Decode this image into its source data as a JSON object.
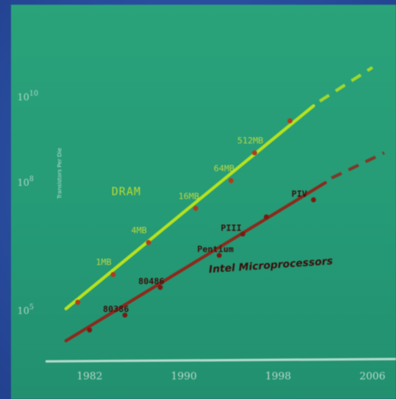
{
  "chart_data": {
    "type": "line",
    "title": "",
    "ylabel": "Transistors Per Die",
    "y_scale": "log",
    "x_ticks": [
      "1982",
      "1990",
      "1998",
      "2006"
    ],
    "y_ticks": [
      {
        "value": 100000,
        "base": "10",
        "exp": "5"
      },
      {
        "value": 100000000,
        "base": "10",
        "exp": "8"
      },
      {
        "value": 10000000000,
        "base": "10",
        "exp": "10"
      }
    ],
    "xlim": [
      1978,
      2008
    ],
    "ylim_exp": [
      4.0,
      10.7
    ],
    "series": [
      {
        "name": "DRAM",
        "color": "#b6e21e",
        "marker_color": "#b23a1c",
        "x": [
          1981,
          1984,
          1987,
          1991,
          1994,
          1996,
          1999
        ],
        "y_exp": [
          5.2,
          5.85,
          6.6,
          7.4,
          8.05,
          8.7,
          9.45
        ],
        "point_labels": [
          "",
          "1MB",
          "4MB",
          "16MB",
          "64MB",
          "512MB",
          ""
        ],
        "fit_start": [
          1980,
          5.05
        ],
        "fit_end": [
          2001,
          9.8
        ],
        "extension_end": [
          2006,
          10.7
        ]
      },
      {
        "name": "Intel Microprocessors",
        "color": "#8b2a1c",
        "marker_color": "#7a1a10",
        "x": [
          1982,
          1985,
          1988,
          1993,
          1995,
          1997,
          2001
        ],
        "y_exp": [
          4.55,
          4.9,
          5.55,
          6.3,
          6.8,
          7.2,
          7.6
        ],
        "point_labels": [
          "",
          "80386",
          "80486",
          "Pentium",
          "PIII",
          "",
          "PIV"
        ],
        "fit_start": [
          1980,
          4.3
        ],
        "fit_end": [
          2002,
          8.0
        ],
        "extension_end": [
          2007,
          8.7
        ]
      }
    ]
  }
}
